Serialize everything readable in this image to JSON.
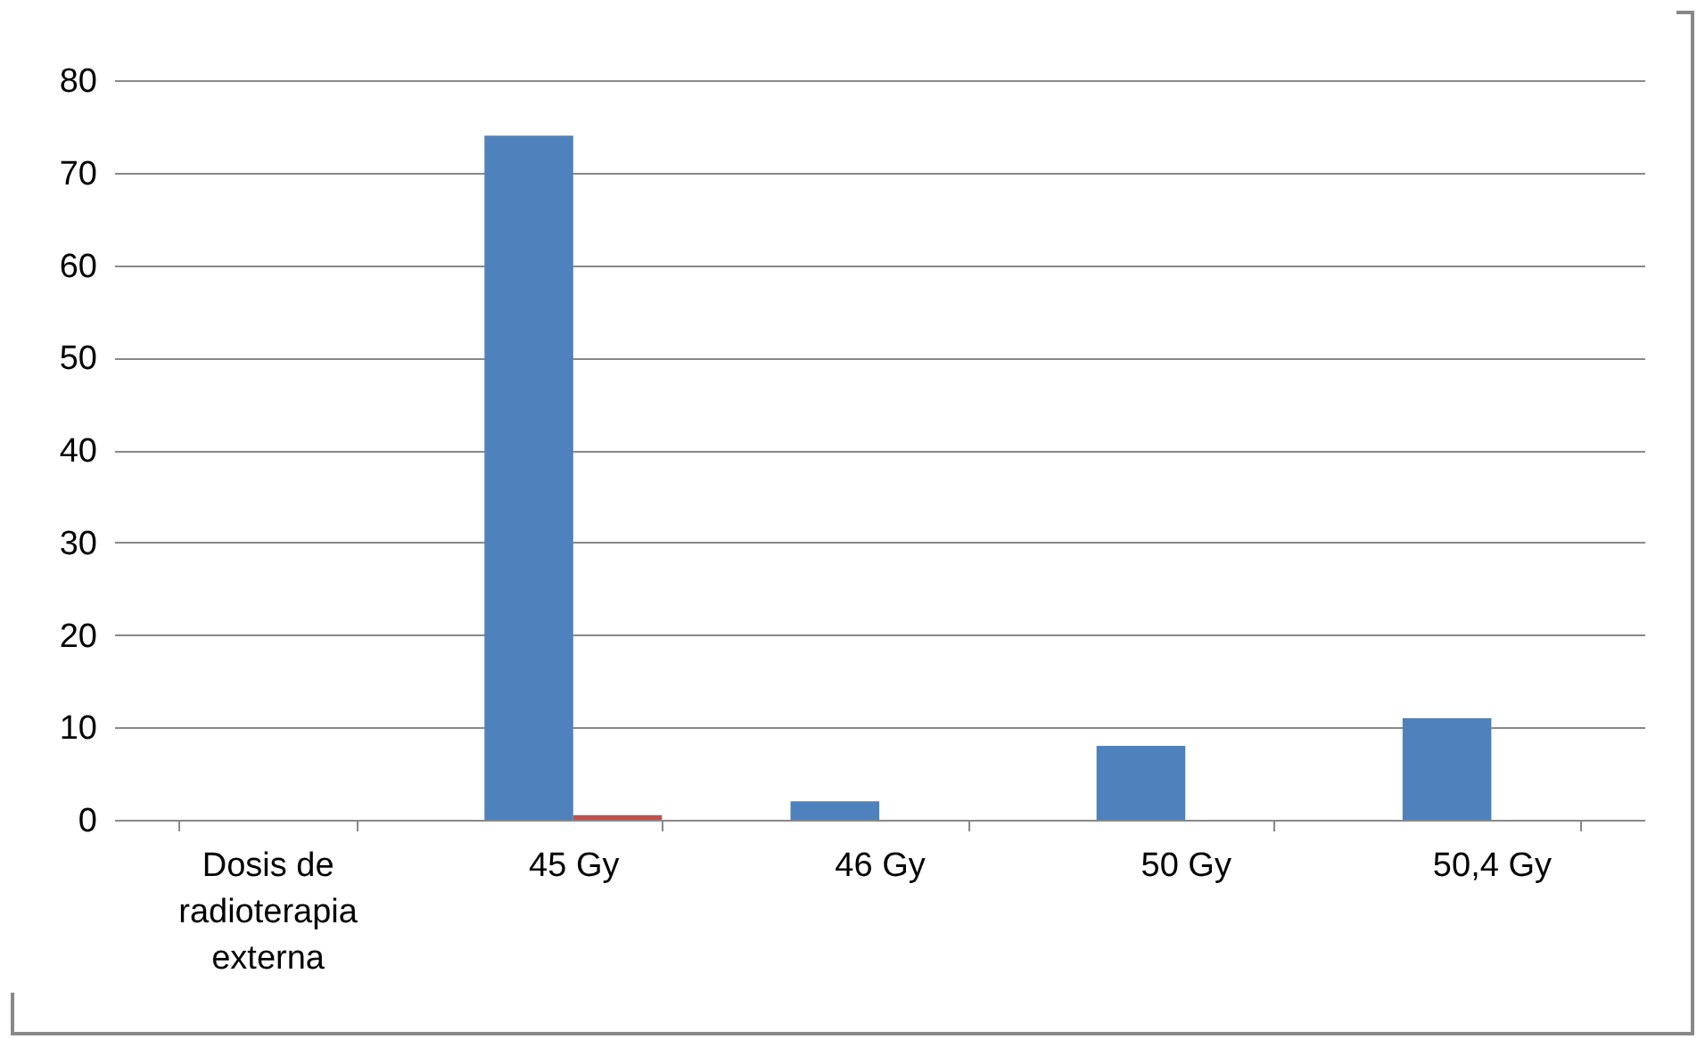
{
  "chart_data": {
    "type": "bar",
    "categories": [
      "Dosis de radioterapia externa",
      "45 Gy",
      "46 Gy",
      "50 Gy",
      "50,4 Gy"
    ],
    "series": [
      {
        "color": "#4f81bd",
        "values": [
          0,
          74,
          2,
          8,
          11
        ]
      },
      {
        "color": "#c0504d",
        "values": [
          0,
          0.5,
          0,
          0,
          0
        ]
      }
    ],
    "ylim": [
      0,
      80
    ],
    "yticks": [
      0,
      10,
      20,
      30,
      40,
      50,
      60,
      70,
      80
    ],
    "grid": "y",
    "legend": false
  }
}
